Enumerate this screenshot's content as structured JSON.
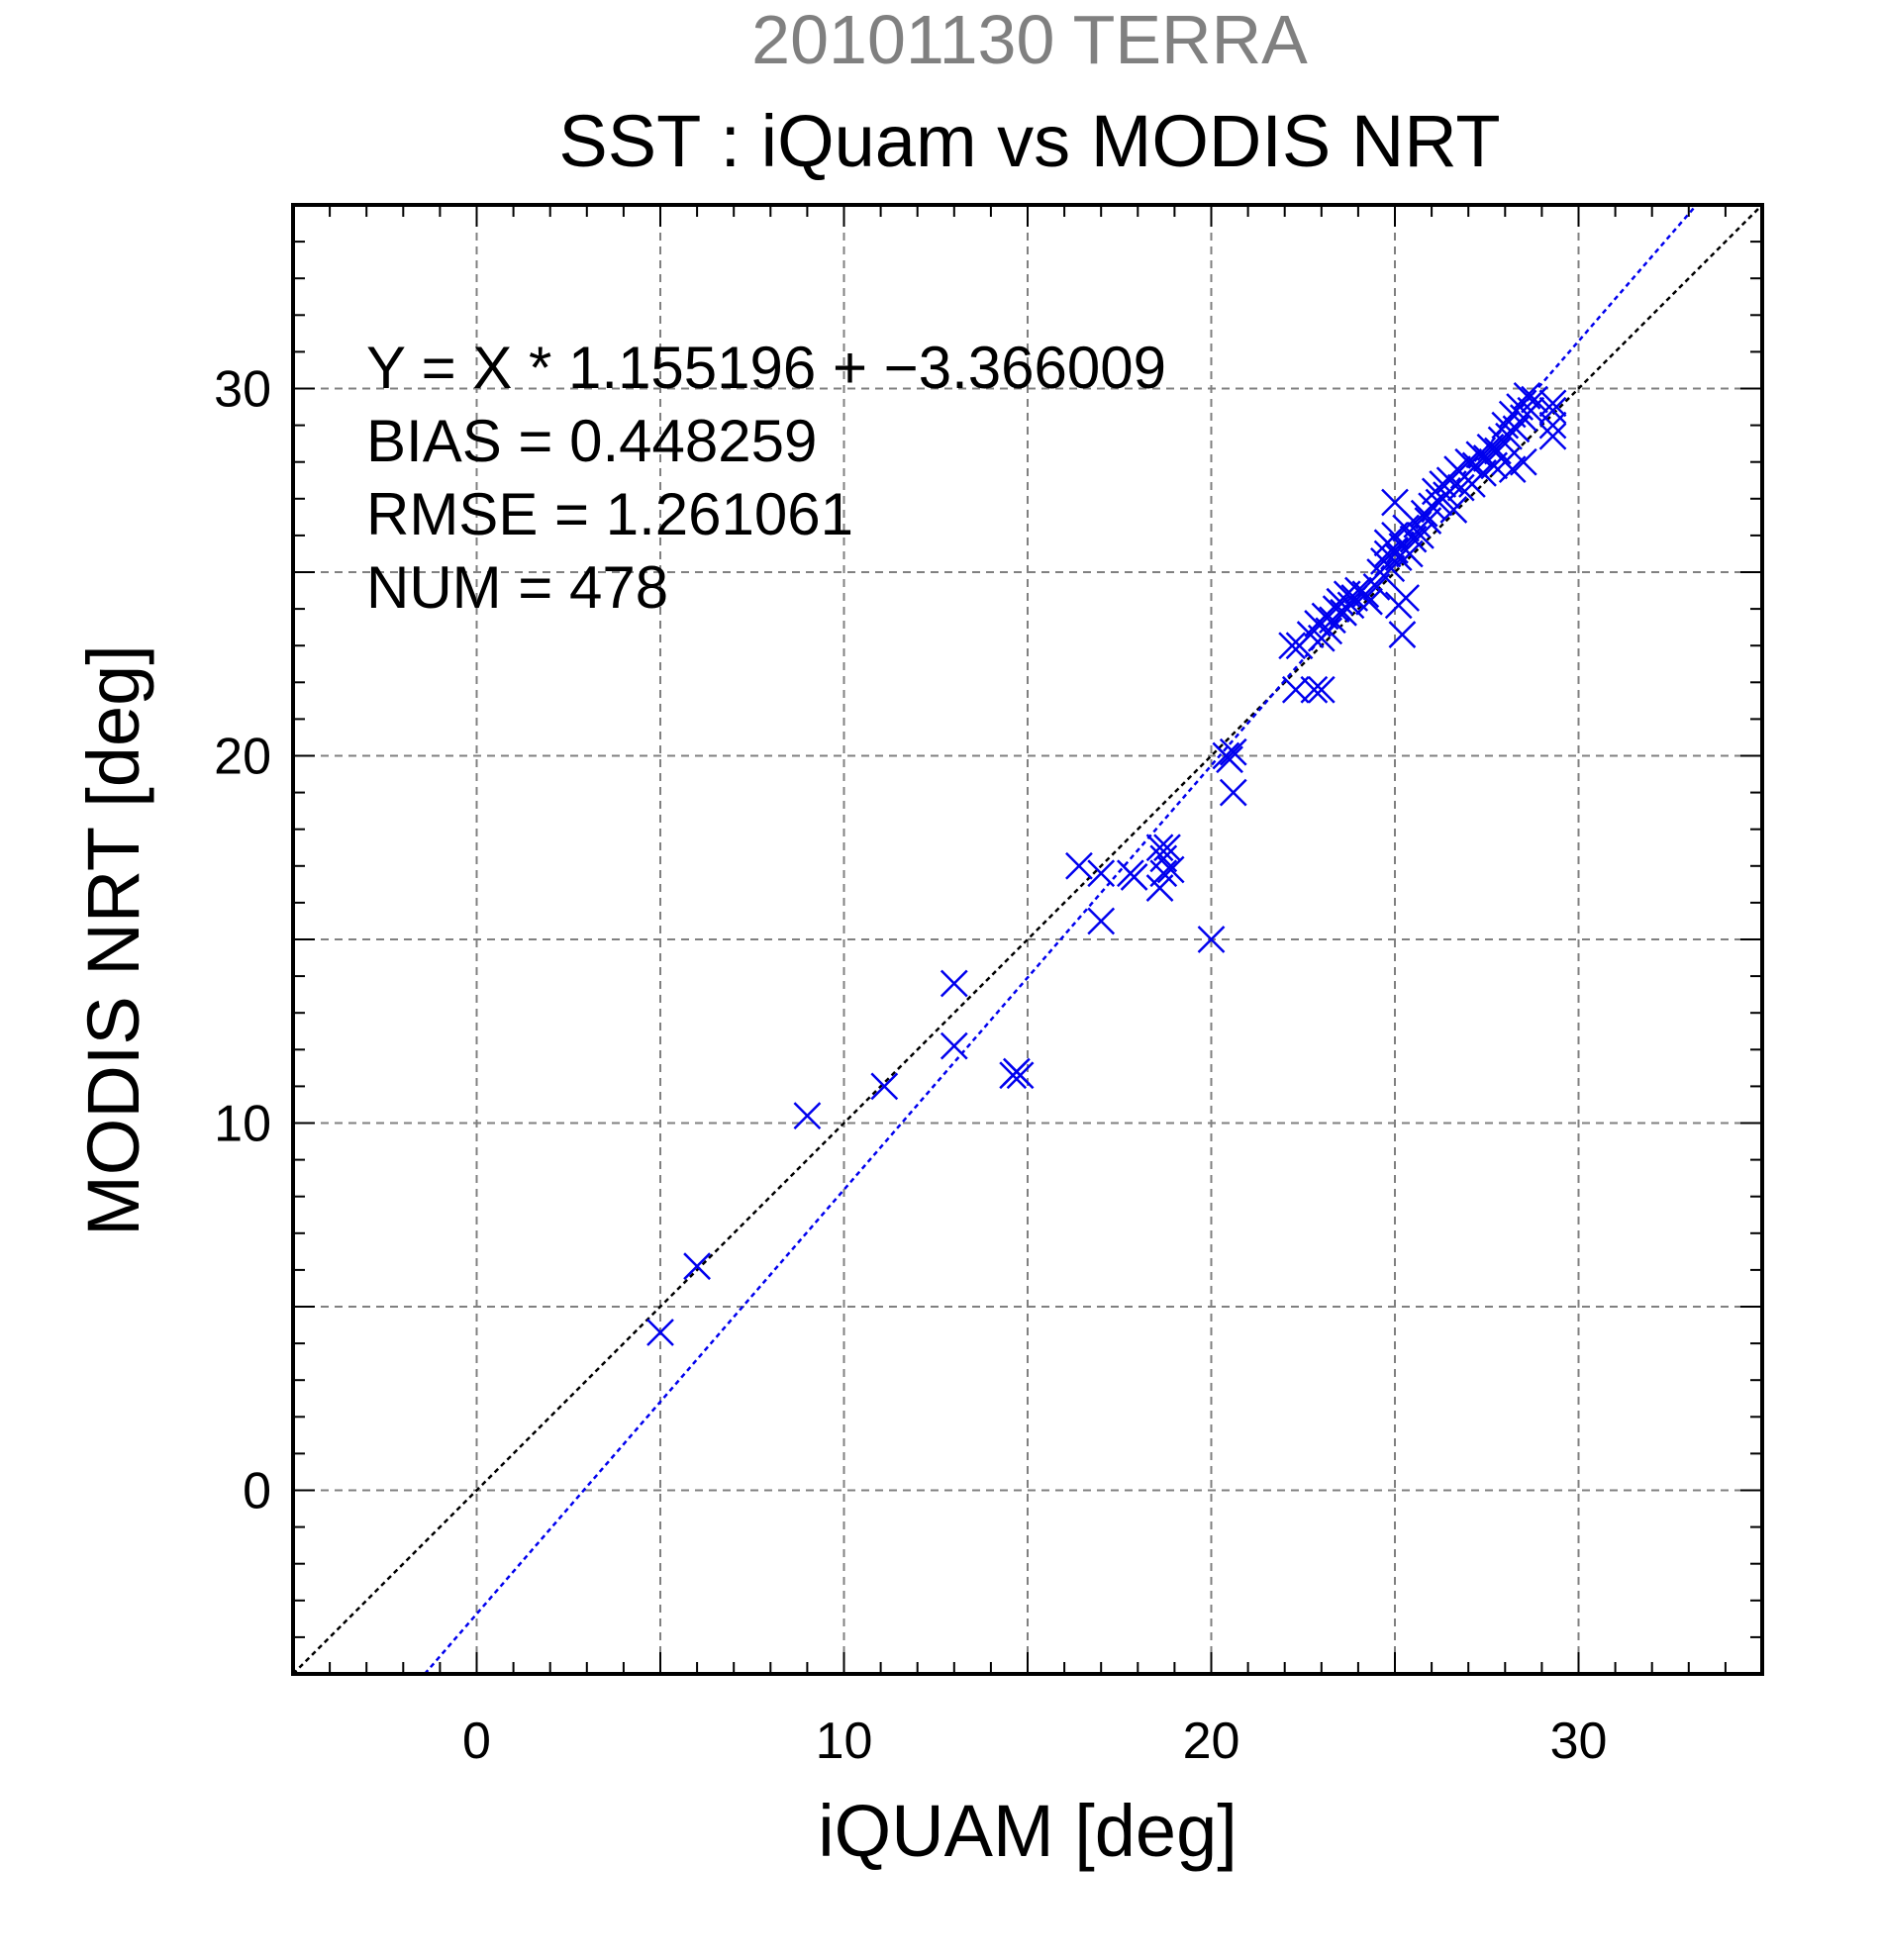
{
  "chart_data": {
    "type": "scatter",
    "suptitle": "20101130 TERRA",
    "title": "SST : iQuam vs MODIS NRT",
    "xlabel": "iQUAM [deg]",
    "ylabel": "MODIS NRT [deg]",
    "xlim": [
      -5,
      35
    ],
    "ylim": [
      -5,
      35
    ],
    "xticks": [
      0,
      10,
      20,
      30
    ],
    "yticks": [
      0,
      10,
      20,
      30
    ],
    "xtick_labels": [
      "0",
      "10",
      "20",
      "30"
    ],
    "ytick_labels": [
      "0",
      "10",
      "20",
      "30"
    ],
    "grid": true,
    "annotations": [
      "Y = X * 1.155196 + −3.366009",
      "BIAS = 0.448259",
      "RMSE = 1.261061",
      "NUM = 478"
    ],
    "fit_line": {
      "slope": 1.155196,
      "intercept": -3.366009
    },
    "identity_line": {
      "slope": 1,
      "intercept": 0
    },
    "series": [
      {
        "marker": "x",
        "color": "#0000ee",
        "points": [
          [
            5.0,
            4.3
          ],
          [
            6.0,
            6.1
          ],
          [
            9.0,
            10.2
          ],
          [
            11.1,
            11.0
          ],
          [
            13.0,
            13.8
          ],
          [
            13.0,
            12.1
          ],
          [
            14.6,
            11.3
          ],
          [
            14.8,
            11.3
          ],
          [
            14.7,
            11.4
          ],
          [
            16.4,
            17.0
          ],
          [
            17.0,
            16.8
          ],
          [
            17.0,
            15.5
          ],
          [
            17.8,
            16.8
          ],
          [
            17.9,
            16.7
          ],
          [
            18.6,
            17.5
          ],
          [
            18.8,
            17.5
          ],
          [
            18.7,
            17.2
          ],
          [
            18.7,
            16.8
          ],
          [
            18.9,
            16.9
          ],
          [
            18.6,
            16.4
          ],
          [
            20.0,
            15.0
          ],
          [
            20.4,
            20.0
          ],
          [
            20.6,
            20.1
          ],
          [
            20.5,
            19.9
          ],
          [
            20.6,
            19.0
          ],
          [
            22.2,
            23.0
          ],
          [
            22.4,
            23.0
          ],
          [
            22.3,
            21.8
          ],
          [
            22.8,
            21.8
          ],
          [
            23.0,
            21.8
          ],
          [
            22.7,
            23.3
          ],
          [
            22.9,
            23.6
          ],
          [
            23.0,
            23.2
          ],
          [
            23.1,
            23.8
          ],
          [
            23.2,
            23.4
          ],
          [
            23.3,
            23.7
          ],
          [
            23.4,
            24.0
          ],
          [
            23.5,
            24.2
          ],
          [
            23.6,
            23.9
          ],
          [
            23.7,
            24.4
          ],
          [
            23.8,
            24.1
          ],
          [
            23.9,
            24.3
          ],
          [
            24.0,
            24.5
          ],
          [
            24.2,
            24.4
          ],
          [
            24.3,
            24.2
          ],
          [
            24.5,
            24.6
          ],
          [
            24.6,
            25.0
          ],
          [
            24.7,
            25.3
          ],
          [
            24.8,
            25.5
          ],
          [
            24.8,
            25.8
          ],
          [
            24.9,
            25.1
          ],
          [
            25.0,
            25.6
          ],
          [
            25.0,
            26.0
          ],
          [
            25.1,
            25.4
          ],
          [
            25.1,
            24.1
          ],
          [
            25.2,
            25.7
          ],
          [
            25.3,
            24.3
          ],
          [
            25.3,
            26.2
          ],
          [
            25.2,
            23.3
          ],
          [
            25.4,
            25.5
          ],
          [
            25.5,
            25.9
          ],
          [
            25.6,
            26.3
          ],
          [
            25.7,
            26.0
          ],
          [
            25.8,
            26.6
          ],
          [
            25.0,
            26.9
          ],
          [
            25.9,
            26.4
          ],
          [
            26.0,
            26.8
          ],
          [
            26.1,
            27.2
          ],
          [
            26.2,
            26.9
          ],
          [
            26.3,
            27.4
          ],
          [
            26.4,
            27.1
          ],
          [
            26.5,
            27.5
          ],
          [
            26.6,
            26.7
          ],
          [
            26.7,
            27.8
          ],
          [
            26.8,
            27.3
          ],
          [
            26.9,
            27.6
          ],
          [
            27.0,
            28.0
          ],
          [
            27.1,
            27.4
          ],
          [
            27.2,
            27.9
          ],
          [
            27.3,
            28.2
          ],
          [
            27.4,
            27.7
          ],
          [
            27.5,
            28.1
          ],
          [
            27.6,
            28.4
          ],
          [
            27.7,
            27.9
          ],
          [
            27.8,
            28.3
          ],
          [
            27.9,
            28.6
          ],
          [
            28.0,
            28.0
          ],
          [
            28.0,
            29.0
          ],
          [
            28.1,
            28.7
          ],
          [
            28.2,
            29.3
          ],
          [
            28.3,
            28.9
          ],
          [
            28.4,
            29.5
          ],
          [
            28.2,
            27.8
          ],
          [
            28.5,
            29.2
          ],
          [
            28.6,
            29.8
          ],
          [
            28.7,
            29.4
          ],
          [
            28.5,
            28.0
          ],
          [
            28.8,
            29.7
          ],
          [
            29.3,
            29.4
          ],
          [
            29.3,
            29.0
          ],
          [
            29.3,
            28.7
          ],
          [
            29.3,
            29.6
          ]
        ]
      }
    ]
  }
}
